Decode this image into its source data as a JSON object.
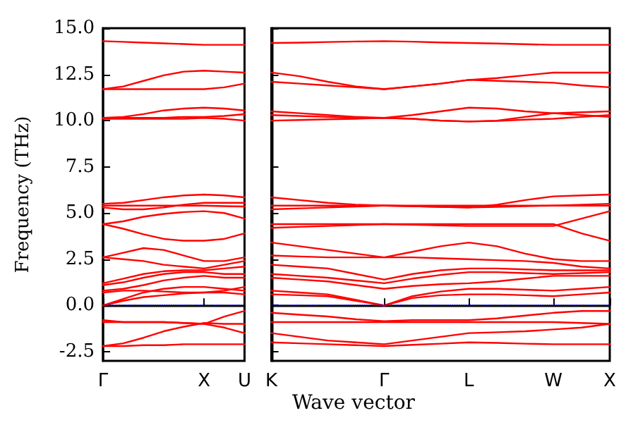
{
  "chart_data": [
    {
      "type": "line",
      "ylabel": "Frequency (THz)",
      "marker": "none",
      "line_style": "solid",
      "categories": [
        "Γ",
        null,
        null,
        null,
        null,
        "X",
        null,
        "U"
      ],
      "ylim": [
        -3,
        15
      ],
      "yticks": [
        {
          "value": -2.5,
          "label": "-2.5"
        },
        {
          "value": 0,
          "label": "0.0"
        },
        {
          "value": 2.5,
          "label": "2.5"
        },
        {
          "value": 5,
          "label": "5.0"
        },
        {
          "value": 7.5,
          "label": "7.5"
        },
        {
          "value": 10,
          "label": "10.0"
        },
        {
          "value": 12.5,
          "label": "12.5"
        },
        {
          "value": 15,
          "label": "15.0"
        }
      ],
      "ref_lines": [
        {
          "axis": "y",
          "value": 0,
          "color": "#0000ff",
          "line_style": "dotted"
        }
      ],
      "series": [
        {
          "color": "#ff0000",
          "values": [
            14.3,
            14.26,
            14.22,
            14.18,
            14.14,
            14.1,
            14.1,
            14.1
          ]
        },
        {
          "color": "#ff0000",
          "values": [
            11.7,
            11.85,
            12.15,
            12.45,
            12.65,
            12.7,
            12.65,
            12.6
          ]
        },
        {
          "color": "#ff0000",
          "values": [
            11.7,
            11.7,
            11.7,
            11.7,
            11.7,
            11.7,
            11.8,
            12.0
          ]
        },
        {
          "color": "#ff0000",
          "values": [
            10.15,
            10.2,
            10.35,
            10.55,
            10.65,
            10.7,
            10.65,
            10.55
          ]
        },
        {
          "color": "#ff0000",
          "values": [
            10.15,
            10.15,
            10.15,
            10.15,
            10.2,
            10.2,
            10.25,
            10.35
          ]
        },
        {
          "color": "#ff0000",
          "values": [
            10.1,
            10.1,
            10.1,
            10.1,
            10.1,
            10.15,
            10.1,
            10.0
          ]
        },
        {
          "color": "#ff0000",
          "values": [
            5.5,
            5.55,
            5.7,
            5.85,
            5.95,
            6.0,
            5.95,
            5.85
          ]
        },
        {
          "color": "#ff0000",
          "values": [
            5.3,
            5.2,
            5.2,
            5.3,
            5.45,
            5.55,
            5.55,
            5.55
          ]
        },
        {
          "color": "#ff0000",
          "values": [
            5.4,
            5.4,
            5.4,
            5.4,
            5.4,
            5.4,
            5.37,
            5.35
          ]
        },
        {
          "color": "#ff0000",
          "values": [
            4.4,
            4.55,
            4.8,
            4.95,
            5.05,
            5.1,
            5.0,
            4.7
          ]
        },
        {
          "color": "#ff0000",
          "values": [
            4.4,
            4.15,
            3.85,
            3.6,
            3.5,
            3.5,
            3.6,
            3.9
          ]
        },
        {
          "color": "#ff0000",
          "values": [
            2.6,
            2.85,
            3.1,
            3.0,
            2.7,
            2.4,
            2.4,
            2.6
          ]
        },
        {
          "color": "#ff0000",
          "values": [
            2.6,
            2.5,
            2.4,
            2.2,
            2.1,
            2.0,
            2.2,
            2.4
          ]
        },
        {
          "color": "#ff0000",
          "values": [
            1.2,
            1.45,
            1.7,
            1.85,
            1.9,
            1.9,
            2.0,
            2.1
          ]
        },
        {
          "color": "#ff0000",
          "values": [
            1.1,
            1.25,
            1.5,
            1.7,
            1.8,
            1.8,
            1.7,
            1.7
          ]
        },
        {
          "color": "#ff0000",
          "values": [
            0.8,
            0.9,
            1.1,
            1.35,
            1.5,
            1.6,
            1.5,
            1.5
          ]
        },
        {
          "color": "#ff0000",
          "values": [
            0.7,
            0.8,
            0.8,
            0.75,
            0.7,
            0.7,
            0.8,
            1.0
          ]
        },
        {
          "color": "#ff0000",
          "values": [
            0,
            0.35,
            0.7,
            0.9,
            1.0,
            1.0,
            0.9,
            0.8
          ]
        },
        {
          "color": "#ff0000",
          "values": [
            0,
            0.25,
            0.45,
            0.55,
            0.65,
            0.7,
            0.7,
            0.6
          ]
        },
        {
          "color": "#ff0000",
          "values": [
            -0.8,
            -0.9,
            -0.9,
            -0.9,
            -0.95,
            -1.0,
            -0.6,
            -0.3
          ]
        },
        {
          "color": "#ff0000",
          "values": [
            -0.9,
            -0.9,
            -0.9,
            -0.9,
            -0.95,
            -1.0,
            -1.2,
            -1.5
          ]
        },
        {
          "color": "#ff0000",
          "values": [
            -2.2,
            -2.05,
            -1.75,
            -1.4,
            -1.15,
            -0.95,
            -1.0,
            -1.0
          ]
        },
        {
          "color": "#ff0000",
          "values": [
            -2.2,
            -2.2,
            -2.15,
            -2.15,
            -2.1,
            -2.1,
            -2.1,
            -2.1
          ]
        }
      ]
    },
    {
      "type": "line",
      "xlabel": "Wave vector",
      "marker": "none",
      "line_style": "solid",
      "tick_labels": "x",
      "categories": [
        "K",
        null,
        null,
        null,
        "Γ",
        null,
        null,
        "L",
        null,
        null,
        "W",
        null,
        "X"
      ],
      "ylim": [
        -3,
        15
      ],
      "yticks": [
        {
          "value": -2.5,
          "label": null
        },
        {
          "value": 0,
          "label": null
        },
        {
          "value": 2.5,
          "label": null
        },
        {
          "value": 5,
          "label": null
        },
        {
          "value": 7.5,
          "label": null
        },
        {
          "value": 10,
          "label": null
        },
        {
          "value": 12.5,
          "label": null
        },
        {
          "value": 15,
          "label": null
        }
      ],
      "ref_lines": [
        {
          "axis": "y",
          "value": 0,
          "color": "#0000ff",
          "line_style": "dotted"
        }
      ],
      "series": [
        {
          "color": "#ff0000",
          "values": [
            14.2,
            14.22,
            14.25,
            14.28,
            14.3,
            14.27,
            14.23,
            14.2,
            14.17,
            14.13,
            14.1,
            14.1,
            14.1
          ]
        },
        {
          "color": "#ff0000",
          "values": [
            12.6,
            12.4,
            12.1,
            11.85,
            11.7,
            11.85,
            12.0,
            12.2,
            12.3,
            12.45,
            12.6,
            12.6,
            12.6
          ]
        },
        {
          "color": "#ff0000",
          "values": [
            12.1,
            12.0,
            11.9,
            11.8,
            11.7,
            11.85,
            12.0,
            12.2,
            12.15,
            12.1,
            12.05,
            11.9,
            11.8
          ]
        },
        {
          "color": "#ff0000",
          "values": [
            10.5,
            10.4,
            10.3,
            10.2,
            10.15,
            10.3,
            10.5,
            10.7,
            10.65,
            10.5,
            10.4,
            10.45,
            10.5
          ]
        },
        {
          "color": "#ff0000",
          "values": [
            10.3,
            10.25,
            10.2,
            10.15,
            10.15,
            10.1,
            10.0,
            9.95,
            10.0,
            10.2,
            10.4,
            10.3,
            10.2
          ]
        },
        {
          "color": "#ff0000",
          "values": [
            10.0,
            10.03,
            10.07,
            10.1,
            10.15,
            10.1,
            10.0,
            9.95,
            9.98,
            10.05,
            10.1,
            10.2,
            10.3
          ]
        },
        {
          "color": "#ff0000",
          "values": [
            5.85,
            5.7,
            5.55,
            5.45,
            5.4,
            5.37,
            5.33,
            5.3,
            5.45,
            5.7,
            5.9,
            5.95,
            6.0
          ]
        },
        {
          "color": "#ff0000",
          "values": [
            5.4,
            5.4,
            5.4,
            5.4,
            5.4,
            5.37,
            5.33,
            5.3,
            5.33,
            5.37,
            5.4,
            5.45,
            5.5
          ]
        },
        {
          "color": "#ff0000",
          "values": [
            5.2,
            5.25,
            5.3,
            5.35,
            5.4,
            5.4,
            5.4,
            5.4,
            5.4,
            5.4,
            5.4,
            5.4,
            5.4
          ]
        },
        {
          "color": "#ff0000",
          "values": [
            4.4,
            4.4,
            4.4,
            4.4,
            4.4,
            4.37,
            4.33,
            4.3,
            4.3,
            4.3,
            4.3,
            4.7,
            5.1
          ]
        },
        {
          "color": "#ff0000",
          "values": [
            4.2,
            4.25,
            4.3,
            4.35,
            4.4,
            4.4,
            4.4,
            4.4,
            4.4,
            4.4,
            4.4,
            3.9,
            3.5
          ]
        },
        {
          "color": "#ff0000",
          "values": [
            3.4,
            3.2,
            3.0,
            2.8,
            2.6,
            2.9,
            3.2,
            3.4,
            3.2,
            2.8,
            2.5,
            2.4,
            2.4
          ]
        },
        {
          "color": "#ff0000",
          "values": [
            2.7,
            2.65,
            2.6,
            2.6,
            2.6,
            2.6,
            2.55,
            2.5,
            2.45,
            2.4,
            2.3,
            2.1,
            2.0
          ]
        },
        {
          "color": "#ff0000",
          "values": [
            2.2,
            2.1,
            2.0,
            1.7,
            1.4,
            1.7,
            1.9,
            2.0,
            2.0,
            1.95,
            1.9,
            1.9,
            1.9
          ]
        },
        {
          "color": "#ff0000",
          "values": [
            1.7,
            1.6,
            1.5,
            1.35,
            1.2,
            1.45,
            1.65,
            1.8,
            1.8,
            1.75,
            1.7,
            1.75,
            1.8
          ]
        },
        {
          "color": "#ff0000",
          "values": [
            1.5,
            1.4,
            1.3,
            1.1,
            0.9,
            1.05,
            1.15,
            1.2,
            1.3,
            1.45,
            1.6,
            1.6,
            1.6
          ]
        },
        {
          "color": "#ff0000",
          "values": [
            0.8,
            0.7,
            0.6,
            0.3,
            0,
            0.5,
            0.75,
            0.9,
            0.9,
            0.85,
            0.8,
            0.9,
            1.0
          ]
        },
        {
          "color": "#ff0000",
          "values": [
            0.6,
            0.55,
            0.5,
            0.25,
            0,
            0.4,
            0.55,
            0.6,
            0.6,
            0.55,
            0.5,
            0.6,
            0.7
          ]
        },
        {
          "color": "#ff0000",
          "values": [
            -0.4,
            -0.5,
            -0.6,
            -0.75,
            -0.85,
            -0.8,
            -0.8,
            -0.8,
            -0.7,
            -0.55,
            -0.4,
            -0.3,
            -0.3
          ]
        },
        {
          "color": "#ff0000",
          "values": [
            -0.9,
            -0.9,
            -0.9,
            -0.9,
            -0.9,
            -0.9,
            -0.9,
            -0.9,
            -0.9,
            -0.9,
            -0.9,
            -0.95,
            -1.0
          ]
        },
        {
          "color": "#ff0000",
          "values": [
            -1.5,
            -1.7,
            -1.9,
            -2.0,
            -2.1,
            -1.9,
            -1.7,
            -1.5,
            -1.45,
            -1.4,
            -1.3,
            -1.2,
            -1.0
          ]
        },
        {
          "color": "#ff0000",
          "values": [
            -2.0,
            -2.05,
            -2.1,
            -2.15,
            -2.2,
            -2.13,
            -2.07,
            -2.0,
            -2.03,
            -2.07,
            -2.1,
            -2.1,
            -2.1
          ]
        }
      ]
    }
  ]
}
